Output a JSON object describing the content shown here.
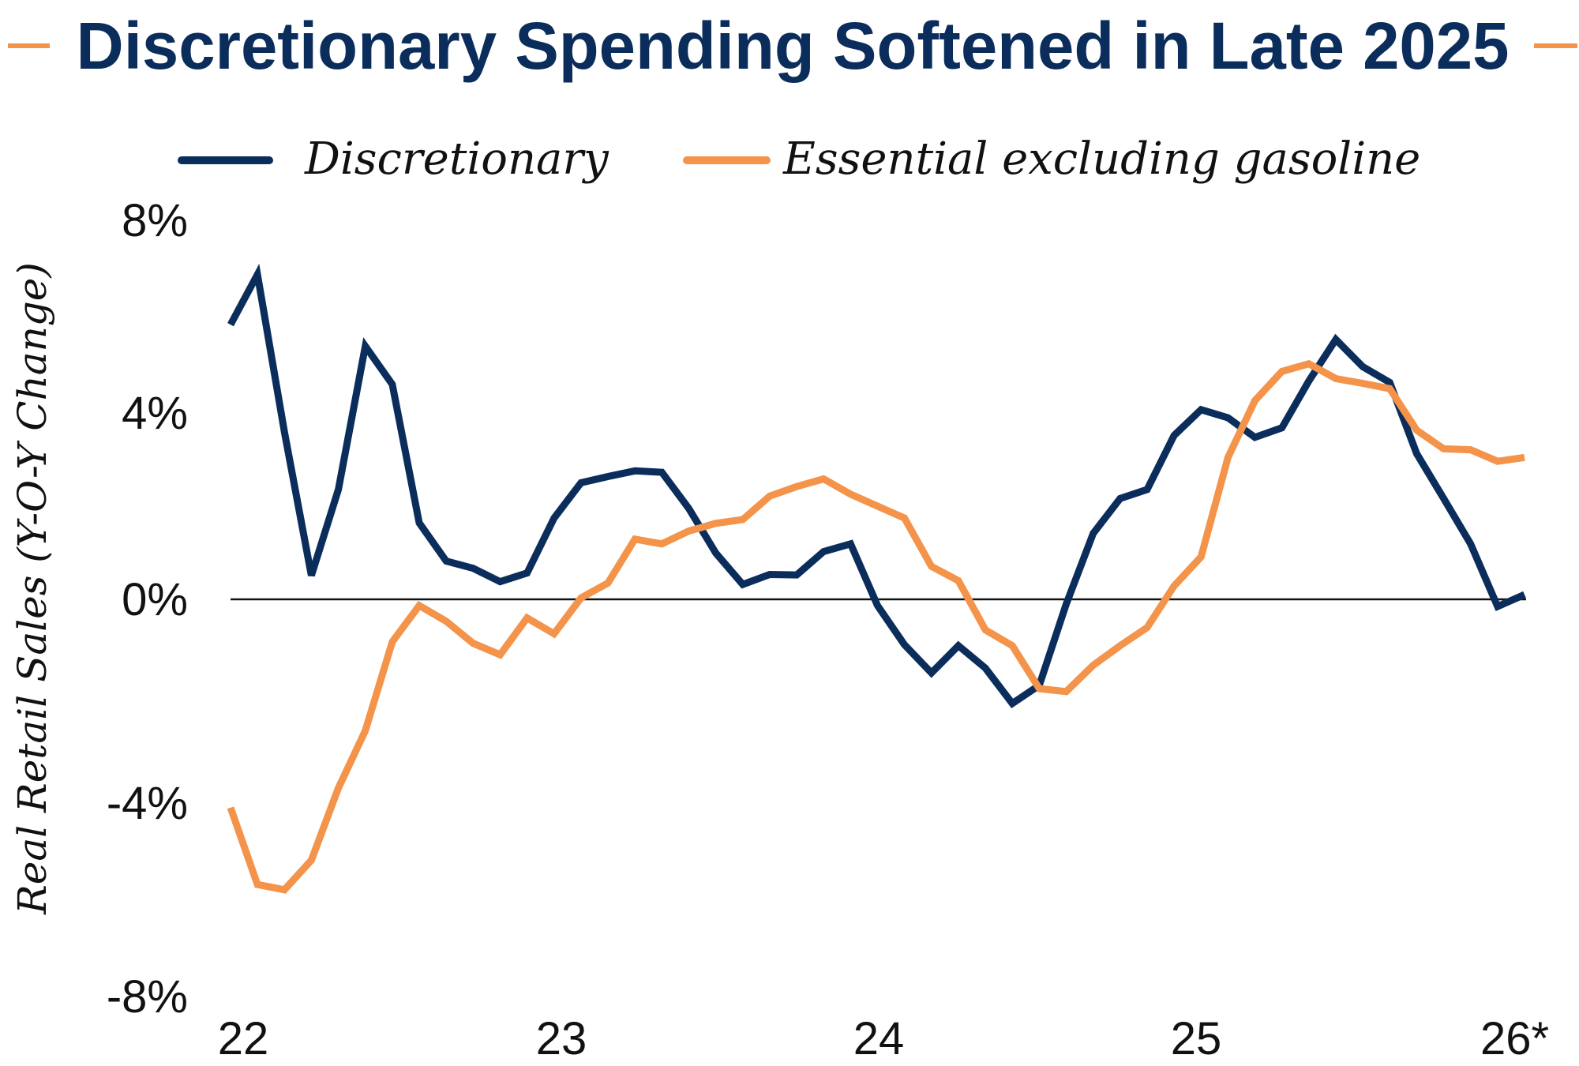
{
  "colors": {
    "discretionary": "#0b2d5c",
    "essential": "#f4934a",
    "title": "#0b2d5c",
    "zero_line": "#111111"
  },
  "chart_data": {
    "type": "line",
    "title": "Discretionary Spending Softened in Late 2025",
    "xlabel": "",
    "ylabel": "Real Retail Sales (Y-O-Y Change)",
    "ylim": [
      -8,
      8
    ],
    "yticks": [
      8,
      4,
      0,
      -4,
      -8
    ],
    "ytick_labels": [
      "8%",
      "4%",
      "0%",
      "-4%",
      "-8%"
    ],
    "xtick_labels": [
      "22",
      "23",
      "24",
      "25",
      "26*"
    ],
    "x_period": "monthly, Jan 2022 – Jan 2026",
    "grid": false,
    "zero_line": true,
    "legend_position": "top",
    "x": [
      "2022-01",
      "2022-02",
      "2022-03",
      "2022-04",
      "2022-05",
      "2022-06",
      "2022-07",
      "2022-08",
      "2022-09",
      "2022-10",
      "2022-11",
      "2022-12",
      "2023-01",
      "2023-02",
      "2023-03",
      "2023-04",
      "2023-05",
      "2023-06",
      "2023-07",
      "2023-08",
      "2023-09",
      "2023-10",
      "2023-11",
      "2023-12",
      "2024-01",
      "2024-02",
      "2024-03",
      "2024-04",
      "2024-05",
      "2024-06",
      "2024-07",
      "2024-08",
      "2024-09",
      "2024-10",
      "2024-11",
      "2024-12",
      "2025-01",
      "2025-02",
      "2025-03",
      "2025-04",
      "2025-05",
      "2025-06",
      "2025-07",
      "2025-08",
      "2025-09",
      "2025-10",
      "2025-11",
      "2025-12",
      "2026-01"
    ],
    "series": [
      {
        "name": "Discretionary",
        "color_key": "discretionary",
        "values": [
          5.75,
          6.8,
          3.5,
          0.5,
          2.3,
          5.3,
          4.5,
          1.6,
          0.8,
          0.65,
          0.37,
          0.55,
          1.7,
          2.44,
          2.57,
          2.69,
          2.66,
          1.9,
          0.97,
          0.31,
          0.52,
          0.51,
          1.0,
          1.16,
          -0.13,
          -0.95,
          -1.54,
          -0.97,
          -1.44,
          -2.18,
          -1.8,
          -0.1,
          1.38,
          2.11,
          2.3,
          3.43,
          3.97,
          3.8,
          3.39,
          3.59,
          4.57,
          5.44,
          4.87,
          4.54,
          3.05,
          2.11,
          1.16,
          -0.15,
          0.1
        ]
      },
      {
        "name": "Essential excluding gasoline",
        "color_key": "essential",
        "values": [
          -4.36,
          -5.97,
          -6.08,
          -5.46,
          -3.95,
          -2.75,
          -0.89,
          -0.13,
          -0.46,
          -0.92,
          -1.16,
          -0.39,
          -0.72,
          0.03,
          0.34,
          1.26,
          1.16,
          1.43,
          1.59,
          1.67,
          2.16,
          2.36,
          2.52,
          2.2,
          1.95,
          1.7,
          0.69,
          0.39,
          -0.64,
          -0.97,
          -1.87,
          -1.93,
          -1.38,
          -0.97,
          -0.59,
          0.28,
          0.89,
          2.97,
          4.16,
          4.77,
          4.93,
          4.62,
          4.52,
          4.41,
          3.54,
          3.15,
          3.13,
          2.89,
          2.97
        ]
      }
    ]
  }
}
